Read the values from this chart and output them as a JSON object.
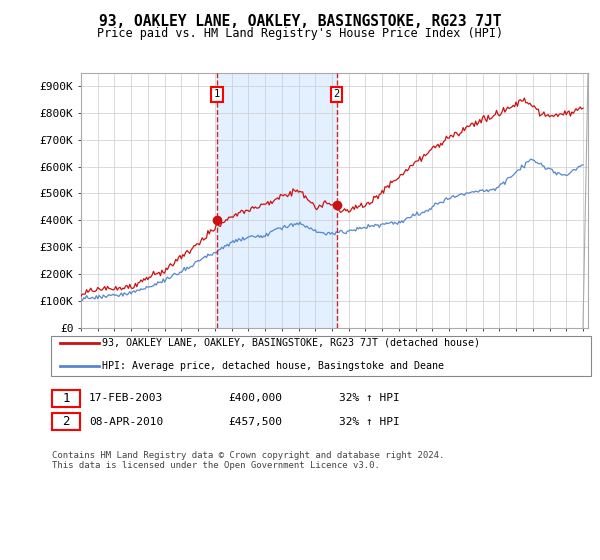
{
  "title": "93, OAKLEY LANE, OAKLEY, BASINGSTOKE, RG23 7JT",
  "subtitle": "Price paid vs. HM Land Registry's House Price Index (HPI)",
  "ylabel_ticks": [
    "£0",
    "£100K",
    "£200K",
    "£300K",
    "£400K",
    "£500K",
    "£600K",
    "£700K",
    "£800K",
    "£900K"
  ],
  "ylim": [
    0,
    950000
  ],
  "yticks": [
    0,
    100000,
    200000,
    300000,
    400000,
    500000,
    600000,
    700000,
    800000,
    900000
  ],
  "x_start_year": 1995,
  "x_end_year": 2025,
  "background_color": "#ffffff",
  "plot_bg_color": "#ffffff",
  "hpi_color": "#5588cc",
  "price_color": "#cc1111",
  "shade_color": "#ddeeff",
  "sale1_year": 2003.12,
  "sale1_price": 400000,
  "sale2_year": 2010.27,
  "sale2_price": 457500,
  "legend_label1": "93, OAKLEY LANE, OAKLEY, BASINGSTOKE, RG23 7JT (detached house)",
  "legend_label2": "HPI: Average price, detached house, Basingstoke and Deane",
  "annotation1_label": "17-FEB-2003",
  "annotation1_price": "£400,000",
  "annotation1_hpi": "32% ↑ HPI",
  "annotation2_label": "08-APR-2010",
  "annotation2_price": "£457,500",
  "annotation2_hpi": "32% ↑ HPI",
  "footer": "Contains HM Land Registry data © Crown copyright and database right 2024.\nThis data is licensed under the Open Government Licence v3.0."
}
